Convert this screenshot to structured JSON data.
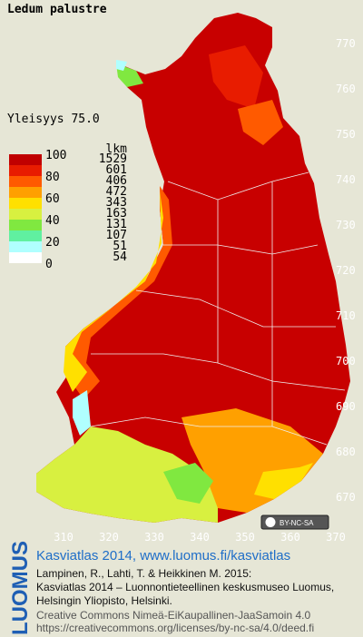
{
  "title": "Ledum palustre",
  "frequency": "Yleisyys 75.0",
  "legend": {
    "scale_labels": [
      100,
      80,
      60,
      40,
      20,
      0
    ],
    "count_header": "lkm",
    "classes": [
      {
        "color": "#c00000",
        "count": 1529
      },
      {
        "color": "#e81c00",
        "count": 601
      },
      {
        "color": "#ff5a00",
        "count": 406
      },
      {
        "color": "#ffa000",
        "count": 472
      },
      {
        "color": "#ffe000",
        "count": 343
      },
      {
        "color": "#d8f040",
        "count": 163
      },
      {
        "color": "#80e840",
        "count": 131
      },
      {
        "color": "#60f0a0",
        "count": 107
      },
      {
        "color": "#b0ffff",
        "count": 51
      },
      {
        "color": "#ffffff",
        "count": 54
      }
    ]
  },
  "map": {
    "yticks": [
      770,
      760,
      750,
      740,
      730,
      720,
      710,
      700,
      690,
      680,
      670
    ],
    "xticks": [
      310,
      320,
      330,
      340,
      350,
      360,
      370
    ],
    "license_badge": "BY-NC-SA"
  },
  "footer": {
    "brand": "LUOMUS",
    "headline": "Kasviatlas 2014, www.luomus.fi/kasviatlas",
    "citation": [
      "Lampinen, R., Lahti, T. & Heikkinen M. 2015:",
      "Kasviatlas 2014 – Luonnontieteellinen keskusmuseo Luomus,",
      "Helsingin Yliopisto, Helsinki."
    ],
    "license": [
      "Creative Commons Nimeä-EiKaupallinen-JaaSamoin 4.0",
      "https://creativecommons.org/licenses/by-nc-sa/4.0/deed.fi"
    ]
  }
}
